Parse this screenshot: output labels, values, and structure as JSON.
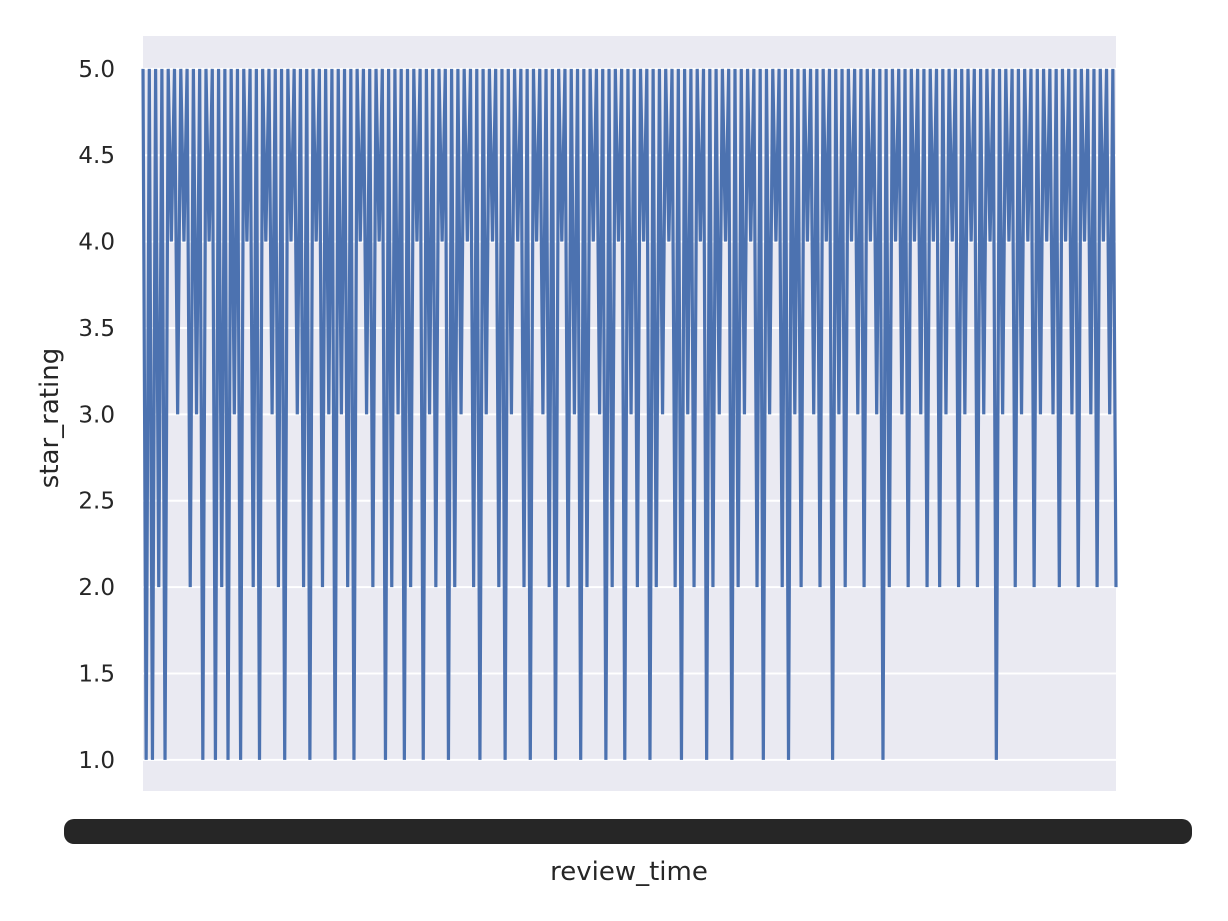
{
  "chart_data": {
    "type": "line",
    "title": "",
    "xlabel": "review_time",
    "ylabel": "star_rating",
    "ylim": [
      0.82,
      5.19
    ],
    "yticks": [
      1.0,
      1.5,
      2.0,
      2.5,
      3.0,
      3.5,
      4.0,
      4.5,
      5.0
    ],
    "ytick_labels": [
      "1.0",
      "1.5",
      "2.0",
      "2.5",
      "3.0",
      "3.5",
      "4.0",
      "4.5",
      "5.0"
    ],
    "xticks_note": "x tick labels are dense and overlapping, unreadable",
    "grid": true,
    "legend": "none",
    "colors": {
      "line": "#4c72b0",
      "background": "#eaeaf2",
      "grid": "#ffffff"
    },
    "series": [
      {
        "values": [
          5,
          1,
          5,
          1,
          5,
          2,
          5,
          1,
          5,
          4,
          5,
          3,
          5,
          4,
          5,
          2,
          5,
          3,
          5,
          1,
          5,
          4,
          5,
          1,
          5,
          2,
          5,
          1,
          5,
          3,
          5,
          1,
          5,
          4,
          5,
          2,
          5,
          1,
          5,
          4,
          5,
          3,
          5,
          2,
          5,
          1,
          5,
          4,
          5,
          3,
          5,
          2,
          5,
          1,
          5,
          4,
          5,
          2,
          5,
          3,
          5,
          1,
          5,
          3,
          5,
          2,
          5,
          1,
          5,
          4,
          5,
          3,
          5,
          2,
          5,
          4,
          5,
          1,
          5,
          2,
          5,
          3,
          5,
          1,
          5,
          2,
          5,
          4,
          5,
          1,
          5,
          3,
          5,
          2,
          5,
          4,
          5,
          1,
          5,
          2,
          5,
          3,
          5,
          4,
          5,
          2,
          5,
          1,
          5,
          3,
          5,
          4,
          5,
          2,
          5,
          1,
          5,
          3,
          5,
          4,
          5,
          2,
          5,
          1,
          5,
          4,
          5,
          3,
          5,
          2,
          5,
          1,
          5,
          4,
          5,
          2,
          5,
          3,
          5,
          1,
          5,
          2,
          5,
          4,
          5,
          3,
          5,
          1,
          5,
          2,
          5,
          4,
          5,
          1,
          5,
          3,
          5,
          2,
          5,
          4,
          5,
          1,
          5,
          2,
          5,
          3,
          5,
          4,
          5,
          2,
          5,
          1,
          5,
          3,
          5,
          2,
          5,
          4,
          5,
          1,
          5,
          2,
          5,
          3,
          5,
          4,
          5,
          1,
          5,
          2,
          5,
          3,
          5,
          4,
          5,
          2,
          5,
          1,
          5,
          3,
          5,
          4,
          5,
          2,
          5,
          1,
          5,
          3,
          5,
          2,
          5,
          4,
          5,
          3,
          5,
          2,
          5,
          4,
          5,
          1,
          5,
          3,
          5,
          2,
          5,
          4,
          5,
          3,
          5,
          2,
          5,
          4,
          5,
          3,
          5,
          1,
          5,
          2,
          5,
          4,
          5,
          3,
          5,
          2,
          5,
          4,
          5,
          3,
          5,
          2,
          5,
          4,
          5,
          2,
          5,
          3,
          5,
          4,
          5,
          2,
          5,
          3,
          5,
          4,
          5,
          2,
          5,
          3,
          5,
          4,
          5,
          1,
          5,
          3,
          5,
          4,
          5,
          2,
          5,
          3,
          5,
          4,
          5,
          2,
          5,
          3,
          5,
          4,
          5,
          3,
          5,
          2,
          5,
          4,
          5,
          3,
          5,
          2,
          5,
          4,
          5,
          3,
          5,
          2,
          5,
          4,
          5,
          3,
          5,
          2
        ]
      }
    ]
  }
}
